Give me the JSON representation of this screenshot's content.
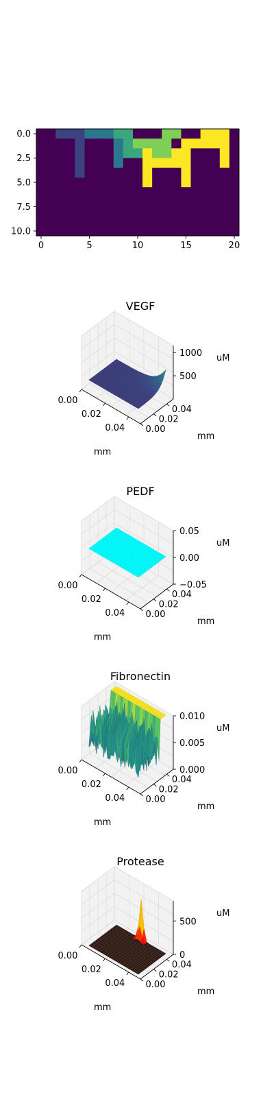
{
  "chart_data": [
    {
      "type": "heatmap",
      "colormap": "viridis",
      "grid": false,
      "xlim": [
        -0.5,
        20.5
      ],
      "ylim": [
        10.5,
        -0.5
      ],
      "xticks": [
        0,
        5,
        10,
        15,
        20
      ],
      "yticks": [
        0.0,
        2.5,
        5.0,
        7.5,
        10.0
      ],
      "xtick_labels": [
        "0",
        "5",
        "10",
        "15",
        "20"
      ],
      "ytick_labels": [
        "0.0",
        "2.5",
        "5.0",
        "7.5",
        "10.0"
      ],
      "vmin": 0,
      "vmax": 5,
      "values": [
        [
          0,
          0,
          1,
          1,
          1,
          2,
          2,
          2,
          3,
          3,
          0,
          0,
          0,
          4,
          4,
          0,
          0,
          5,
          5,
          5,
          0
        ],
        [
          0,
          0,
          0,
          0,
          1,
          0,
          0,
          0,
          2,
          3,
          4,
          4,
          4,
          4,
          0,
          5,
          5,
          5,
          5,
          5,
          0
        ],
        [
          0,
          0,
          0,
          0,
          1,
          0,
          0,
          0,
          2,
          3,
          3,
          5,
          4,
          4,
          5,
          5,
          0,
          0,
          0,
          5,
          0
        ],
        [
          0,
          0,
          0,
          0,
          1,
          0,
          0,
          0,
          2,
          0,
          0,
          5,
          5,
          5,
          5,
          5,
          0,
          0,
          0,
          5,
          0
        ],
        [
          0,
          0,
          0,
          0,
          1,
          0,
          0,
          0,
          0,
          0,
          0,
          5,
          0,
          0,
          0,
          5,
          0,
          0,
          0,
          0,
          0
        ],
        [
          0,
          0,
          0,
          0,
          0,
          0,
          0,
          0,
          0,
          0,
          0,
          5,
          0,
          0,
          0,
          5,
          0,
          0,
          0,
          0,
          0
        ],
        [
          0,
          0,
          0,
          0,
          0,
          0,
          0,
          0,
          0,
          0,
          0,
          0,
          0,
          0,
          0,
          0,
          0,
          0,
          0,
          0,
          0
        ],
        [
          0,
          0,
          0,
          0,
          0,
          0,
          0,
          0,
          0,
          0,
          0,
          0,
          0,
          0,
          0,
          0,
          0,
          0,
          0,
          0,
          0
        ],
        [
          0,
          0,
          0,
          0,
          0,
          0,
          0,
          0,
          0,
          0,
          0,
          0,
          0,
          0,
          0,
          0,
          0,
          0,
          0,
          0,
          0
        ],
        [
          0,
          0,
          0,
          0,
          0,
          0,
          0,
          0,
          0,
          0,
          0,
          0,
          0,
          0,
          0,
          0,
          0,
          0,
          0,
          0,
          0
        ],
        [
          0,
          0,
          0,
          0,
          0,
          0,
          0,
          0,
          0,
          0,
          0,
          0,
          0,
          0,
          0,
          0,
          0,
          0,
          0,
          0,
          0
        ]
      ]
    },
    {
      "type": "surface3d",
      "title": "VEGF",
      "xlabel": "mm",
      "ylabel": "mm",
      "zlabel": "uM",
      "surface": "viridis",
      "x_ticks": [
        "0.00",
        "0.02",
        "0.04"
      ],
      "y_ticks": [
        "0.00",
        "0.02",
        "0.04"
      ],
      "z_ticks": [
        "500",
        "1000"
      ],
      "z_tick_values": [
        500,
        1000
      ],
      "zlim": [
        0,
        1150
      ],
      "xlim": [
        0,
        0.05
      ],
      "ylim": [
        0,
        0.05
      ],
      "field": "corner_peak",
      "base_value": 220,
      "peak_value": 1150,
      "peak_at": [
        0.05,
        0.05
      ]
    },
    {
      "type": "surface3d",
      "title": "PEDF",
      "xlabel": "mm",
      "ylabel": "mm",
      "zlabel": "uM",
      "surface": "#00ffff",
      "x_ticks": [
        "0.00",
        "0.02",
        "0.04"
      ],
      "y_ticks": [
        "0.00",
        "0.02",
        "0.04"
      ],
      "z_ticks": [
        "−0.05",
        "0.00",
        "0.05"
      ],
      "z_tick_values": [
        -0.05,
        0.0,
        0.05
      ],
      "zlim": [
        -0.05,
        0.05
      ],
      "xlim": [
        0,
        0.05
      ],
      "ylim": [
        0,
        0.05
      ],
      "field": "flat",
      "base_value": 0.0
    },
    {
      "type": "surface3d",
      "title": "Fibronectin",
      "xlabel": "mm",
      "ylabel": "mm",
      "zlabel": "uM",
      "surface": "viridis",
      "x_ticks": [
        "0.00",
        "0.02",
        "0.04"
      ],
      "y_ticks": [
        "0.00",
        "0.02",
        "0.04"
      ],
      "z_ticks": [
        "0.000",
        "0.005",
        "0.010"
      ],
      "z_tick_values": [
        0.0,
        0.005,
        0.01
      ],
      "zlim": [
        0,
        0.01
      ],
      "xlim": [
        0,
        0.05
      ],
      "ylim": [
        0,
        0.05
      ],
      "field": "plateau_with_pits",
      "base_value": 0.01
    },
    {
      "type": "surface3d",
      "title": "Protease",
      "xlabel": "mm",
      "ylabel": "mm",
      "zlabel": "uM",
      "surface": "hot",
      "x_ticks": [
        "0.00",
        "0.02",
        "0.04"
      ],
      "y_ticks": [
        "0.00",
        "0.02",
        "0.04"
      ],
      "z_ticks": [
        "0",
        "500"
      ],
      "z_tick_values": [
        0,
        500
      ],
      "zlim": [
        0,
        800
      ],
      "xlim": [
        0,
        0.05
      ],
      "ylim": [
        0,
        0.05
      ],
      "field": "central_spike",
      "base_value": 0,
      "peak_value": 800,
      "peak_at": [
        0.025,
        0.048
      ]
    }
  ]
}
